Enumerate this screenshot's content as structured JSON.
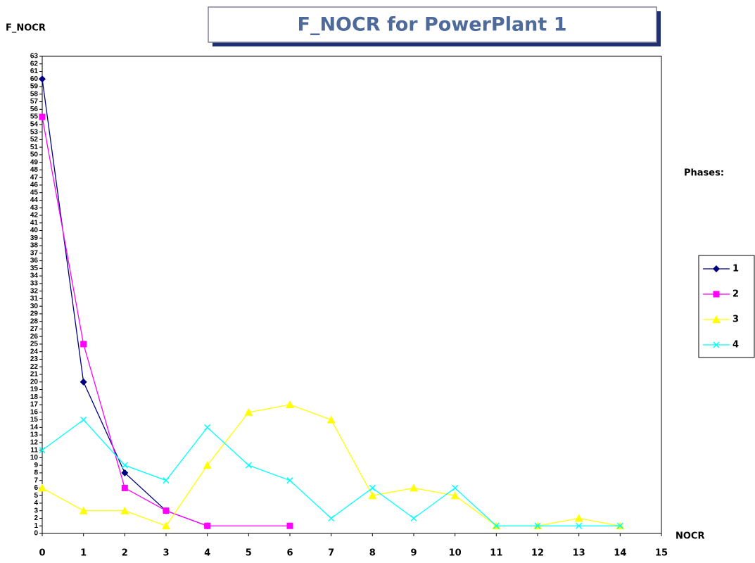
{
  "chart_data": {
    "type": "line",
    "title": "F_NOCR for PowerPlant  1",
    "y_label": "F_NOCR",
    "x_label": "NOCR",
    "legend_title": "Phases:",
    "legend": "right",
    "xlim": [
      0,
      15
    ],
    "xticks": [
      0,
      1,
      2,
      3,
      4,
      5,
      6,
      7,
      8,
      9,
      10,
      11,
      12,
      13,
      14,
      15
    ],
    "ylim": [
      0,
      63
    ],
    "yticks": [
      0,
      1,
      2,
      3,
      4,
      5,
      6,
      7,
      8,
      9,
      10,
      11,
      12,
      13,
      14,
      15,
      16,
      17,
      18,
      19,
      20,
      21,
      22,
      23,
      24,
      25,
      26,
      27,
      28,
      29,
      30,
      31,
      32,
      33,
      34,
      35,
      36,
      37,
      38,
      39,
      40,
      41,
      42,
      43,
      44,
      45,
      46,
      47,
      48,
      49,
      50,
      51,
      52,
      53,
      54,
      55,
      56,
      57,
      58,
      59,
      60,
      61,
      62,
      63
    ],
    "series": [
      {
        "name": "1",
        "color": "#000080",
        "marker": "diamond",
        "x": [
          0,
          1,
          2,
          3,
          4
        ],
        "values": [
          60,
          20,
          8,
          3,
          1
        ]
      },
      {
        "name": "2",
        "color": "#ff00ff",
        "marker": "square",
        "x": [
          0,
          1,
          2,
          3,
          4,
          6
        ],
        "values": [
          55,
          25,
          6,
          3,
          1,
          1
        ]
      },
      {
        "name": "3",
        "color": "#ffff00",
        "marker": "triangle",
        "x": [
          0,
          1,
          2,
          3,
          4,
          5,
          6,
          7,
          8,
          9,
          10,
          11,
          12,
          13,
          14
        ],
        "values": [
          6,
          3,
          3,
          1,
          9,
          16,
          17,
          15,
          5,
          6,
          5,
          1,
          1,
          2,
          1
        ]
      },
      {
        "name": "4",
        "color": "#00ffff",
        "marker": "cross",
        "x": [
          0,
          1,
          2,
          3,
          4,
          5,
          6,
          7,
          8,
          9,
          10,
          11,
          12,
          13,
          14
        ],
        "values": [
          11,
          15,
          9,
          7,
          14,
          9,
          7,
          2,
          6,
          2,
          6,
          1,
          1,
          1,
          1
        ]
      }
    ]
  }
}
